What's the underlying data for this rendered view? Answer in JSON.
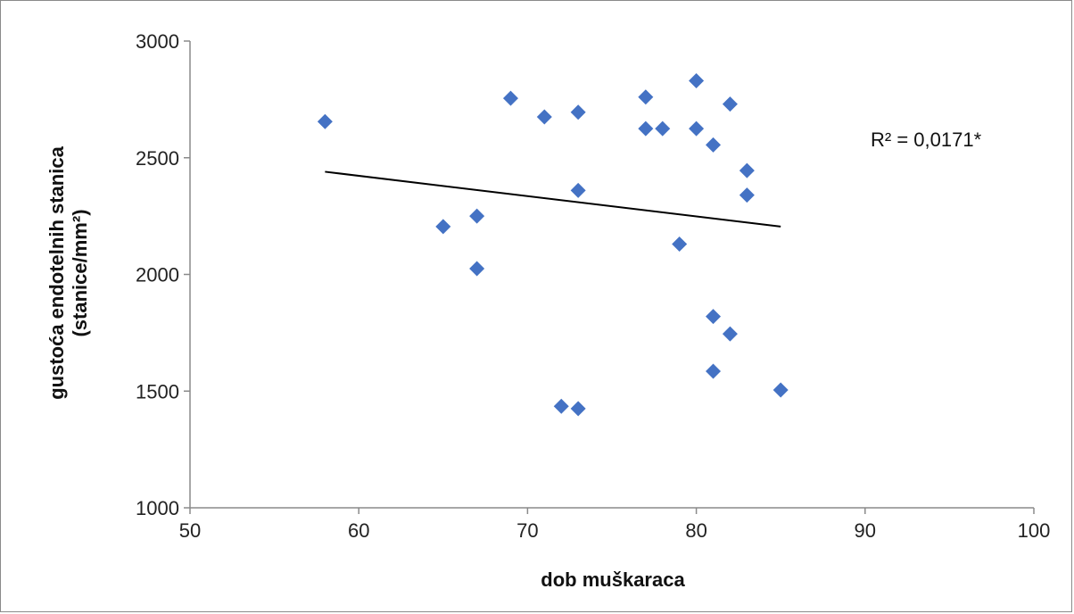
{
  "chart_data": {
    "type": "scatter",
    "xlabel": "dob muškaraca",
    "ylabel_line1": "gustoća endotelnih stanica",
    "ylabel_line2": "(stanice/mm²)",
    "xlim": [
      50,
      100
    ],
    "ylim": [
      1000,
      3000
    ],
    "x_ticks": [
      "50",
      "60",
      "70",
      "80",
      "90",
      "100"
    ],
    "y_ticks": [
      "1000",
      "1500",
      "2000",
      "2500",
      "3000"
    ],
    "grid": false,
    "marker_color": "#4472C4",
    "trendline_color": "#000000",
    "annotation": "R² = 0,0171*",
    "points": [
      {
        "x": 58,
        "y": 2655
      },
      {
        "x": 65,
        "y": 2205
      },
      {
        "x": 67,
        "y": 2250
      },
      {
        "x": 67,
        "y": 2025
      },
      {
        "x": 69,
        "y": 2755
      },
      {
        "x": 71,
        "y": 2675
      },
      {
        "x": 72,
        "y": 1435
      },
      {
        "x": 73,
        "y": 2695
      },
      {
        "x": 73,
        "y": 2360
      },
      {
        "x": 73,
        "y": 1425
      },
      {
        "x": 77,
        "y": 2760
      },
      {
        "x": 77,
        "y": 2625
      },
      {
        "x": 78,
        "y": 2625
      },
      {
        "x": 79,
        "y": 2130
      },
      {
        "x": 80,
        "y": 2830
      },
      {
        "x": 80,
        "y": 2625
      },
      {
        "x": 81,
        "y": 2555
      },
      {
        "x": 81,
        "y": 1820
      },
      {
        "x": 81,
        "y": 1585
      },
      {
        "x": 82,
        "y": 2730
      },
      {
        "x": 82,
        "y": 1745
      },
      {
        "x": 83,
        "y": 2445
      },
      {
        "x": 83,
        "y": 2340
      },
      {
        "x": 85,
        "y": 1505
      }
    ],
    "trendline": [
      {
        "x": 58,
        "y": 2440
      },
      {
        "x": 85,
        "y": 2205
      }
    ]
  }
}
